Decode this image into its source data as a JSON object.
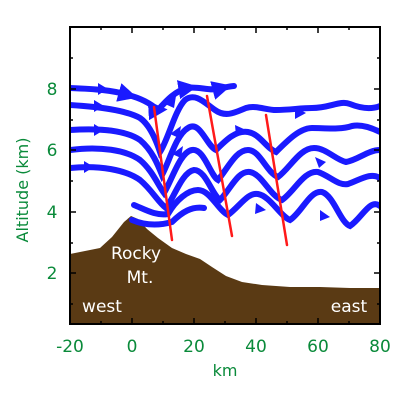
{
  "diagram": {
    "x_axis": {
      "label": "km",
      "ticks": [
        "-20",
        "0",
        "20",
        "40",
        "60",
        "80"
      ],
      "range": [
        -20,
        80
      ]
    },
    "y_axis": {
      "label": "Altitude (km)",
      "ticks": [
        "2",
        "4",
        "6",
        "8"
      ],
      "range": [
        0.4,
        10
      ]
    },
    "terrain": {
      "mountain_label_line1": "Rocky",
      "mountain_label_line2": "Mt.",
      "west_label": "west",
      "east_label": "east",
      "fill_color": "#5a3a14"
    },
    "flow": {
      "streamline_color": "#1a1aff",
      "phase_line_color": "#ff1a1a"
    }
  }
}
